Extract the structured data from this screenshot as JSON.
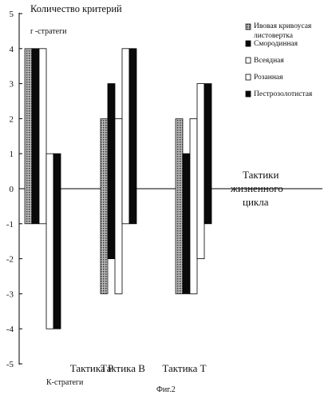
{
  "chart_data": {
    "type": "bar",
    "title": "Количество критерий",
    "top_label": "r -стратеги",
    "bottom_label": "К-стратеги",
    "xlabel_lines": [
      "Тактики",
      "жизненного",
      "цикла"
    ],
    "figure_caption": "Фиг.2",
    "categories": [
      "Тактика P",
      "Тактика B",
      "Тактика T"
    ],
    "ylim": [
      -5,
      5
    ],
    "yticks": [
      "5",
      "4",
      "3",
      "2",
      "1",
      "0",
      "-1",
      "-2",
      "-3",
      "-4",
      "-5"
    ],
    "grid": false,
    "legend_position": "top-right",
    "series": [
      {
        "name": "Ивовая кривоусая листовертка",
        "pattern": "dotted",
        "ranges": [
          [
            -1,
            4
          ],
          [
            -3,
            2
          ],
          [
            -3,
            2
          ]
        ]
      },
      {
        "name": "Смородинная",
        "pattern": "solid",
        "ranges": [
          [
            -1,
            4
          ],
          [
            -2,
            3
          ],
          [
            -3,
            1
          ]
        ]
      },
      {
        "name": "Всеядная",
        "pattern": "white",
        "ranges": [
          [
            -1,
            4
          ],
          [
            -3,
            2
          ],
          [
            -3,
            2
          ]
        ]
      },
      {
        "name": "Розанная",
        "pattern": "white",
        "ranges": [
          [
            -4,
            1
          ],
          [
            -1,
            4
          ],
          [
            -2,
            3
          ]
        ]
      },
      {
        "name": "Пестрозолотистая",
        "pattern": "solid",
        "ranges": [
          [
            -4,
            1
          ],
          [
            -1,
            4
          ],
          [
            -1,
            3
          ]
        ]
      }
    ]
  }
}
